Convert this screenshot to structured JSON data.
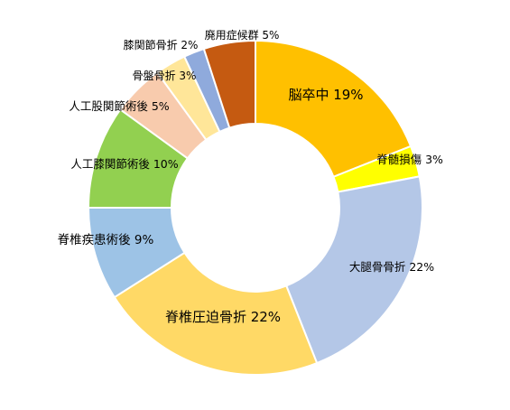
{
  "chart_data": {
    "type": "pie",
    "variant": "donut",
    "title": "",
    "legend": "none",
    "slices": [
      {
        "label": "脳卒中 19%",
        "name": "脳卒中",
        "value": 19,
        "color": "#FFC000"
      },
      {
        "label": "脊髄損傷 3%",
        "name": "脊髄損傷",
        "value": 3,
        "color": "#FFFF00"
      },
      {
        "label": "大腿骨骨折 22%",
        "name": "大腿骨骨折",
        "value": 22,
        "color": "#B4C7E7"
      },
      {
        "label": "脊椎圧迫骨折 22%",
        "name": "脊椎圧迫骨折",
        "value": 22,
        "color": "#FFD966"
      },
      {
        "label": "脊椎疾患術後 9%",
        "name": "脊椎疾患術後",
        "value": 9,
        "color": "#9DC3E6"
      },
      {
        "label": "人工膝関節術後 10%",
        "name": "人工膝関節術後",
        "value": 10,
        "color": "#92D050"
      },
      {
        "label": "人工股関節術後 5%",
        "name": "人工股関節術後",
        "value": 5,
        "color": "#F8CBAD"
      },
      {
        "label": "骨盤骨折 3%",
        "name": "骨盤骨折",
        "value": 3,
        "color": "#FFE699"
      },
      {
        "label": "膝関節骨折 2%",
        "name": "膝関節骨折",
        "value": 2,
        "color": "#8FAADC"
      },
      {
        "label": "廃用症候群 5%",
        "name": "廃用症候群",
        "value": 5,
        "color": "#C55A11"
      }
    ]
  }
}
